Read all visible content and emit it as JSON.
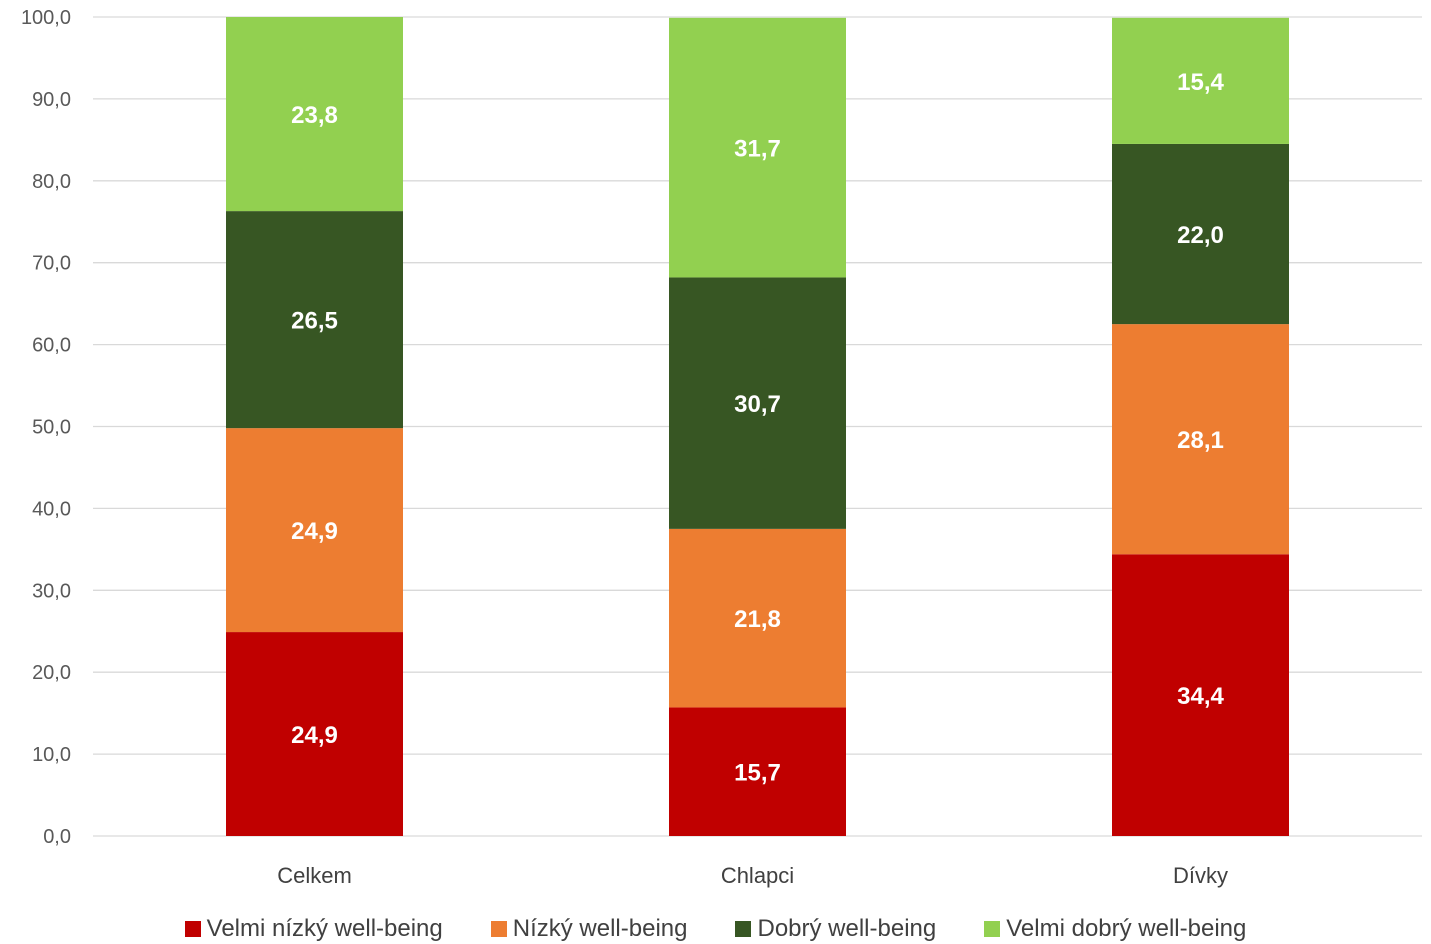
{
  "chart_data": {
    "type": "bar",
    "stacked": true,
    "categories": [
      "Celkem",
      "Chlapci",
      "Dívky"
    ],
    "series": [
      {
        "name": "Velmi nízký well-being",
        "color": "#C00000",
        "values": [
          24.9,
          15.7,
          34.4
        ],
        "labels": [
          "24,9",
          "15,7",
          "34,4"
        ]
      },
      {
        "name": "Nízký well-being",
        "color": "#ED7D31",
        "values": [
          24.9,
          21.8,
          28.1
        ],
        "labels": [
          "24,9",
          "21,8",
          "28,1"
        ]
      },
      {
        "name": "Dobrý well-being",
        "color": "#375623",
        "values": [
          26.5,
          30.7,
          22.0
        ],
        "labels": [
          "26,5",
          "30,7",
          "22,0"
        ]
      },
      {
        "name": "Velmi dobrý well-being",
        "color": "#92D050",
        "values": [
          23.8,
          31.7,
          15.4
        ],
        "labels": [
          "23,8",
          "31,7",
          "15,4"
        ]
      }
    ],
    "y_ticks": [
      "0,0",
      "10,0",
      "20,0",
      "30,0",
      "40,0",
      "50,0",
      "60,0",
      "70,0",
      "80,0",
      "90,0",
      "100,0"
    ],
    "ylim": [
      0,
      100
    ],
    "grid": true,
    "legend_position": "bottom",
    "title": "",
    "xlabel": "",
    "ylabel": ""
  }
}
